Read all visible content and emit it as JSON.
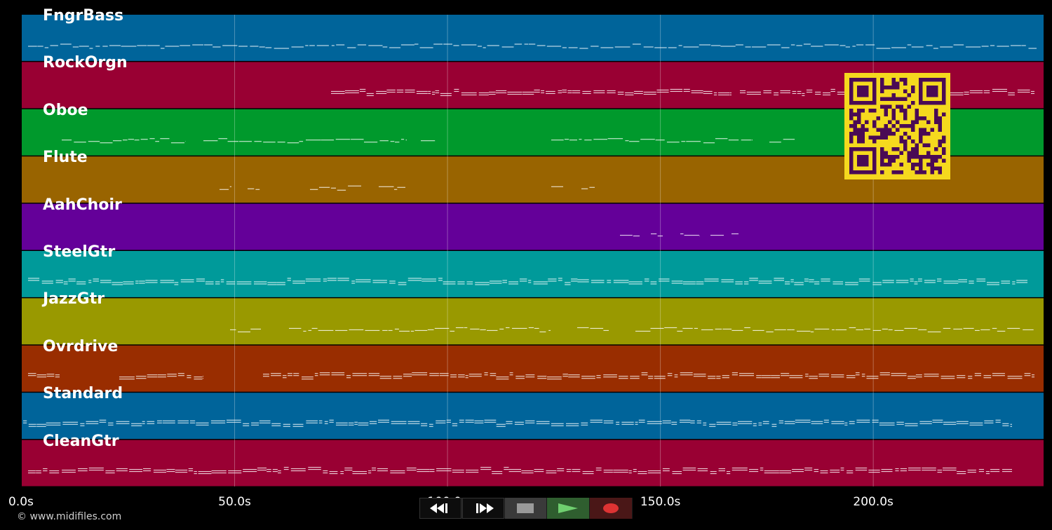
{
  "tracks": [
    {
      "name": "FngrBass",
      "color": "#00649a"
    },
    {
      "name": "RockOrgn",
      "color": "#990033"
    },
    {
      "name": "Oboe",
      "color": "#00992c"
    },
    {
      "name": "Flute",
      "color": "#996400"
    },
    {
      "name": "AahChoir",
      "color": "#640099"
    },
    {
      "name": "SteelGtr",
      "color": "#009a9a"
    },
    {
      "name": "JazzGtr",
      "color": "#999900"
    },
    {
      "name": "Ovrdrive",
      "color": "#992d00"
    },
    {
      "name": "Standard",
      "color": "#00649a"
    },
    {
      "name": "CleanGtr",
      "color": "#990033"
    }
  ],
  "time_axis": {
    "ticks": [
      "0.0s",
      "50.0s",
      "100.0s",
      "150.0s",
      "200.0s"
    ],
    "max_seconds": 240
  },
  "copyright": "© www.midifiles.com",
  "transport": {
    "rewind": "rewind-icon",
    "fast_forward": "fast-forward-icon",
    "stop": "stop-icon",
    "play": "play-icon",
    "record": "record-icon"
  },
  "qr_colors": {
    "dark": "#4a0a55",
    "light": "#f5d91e"
  }
}
